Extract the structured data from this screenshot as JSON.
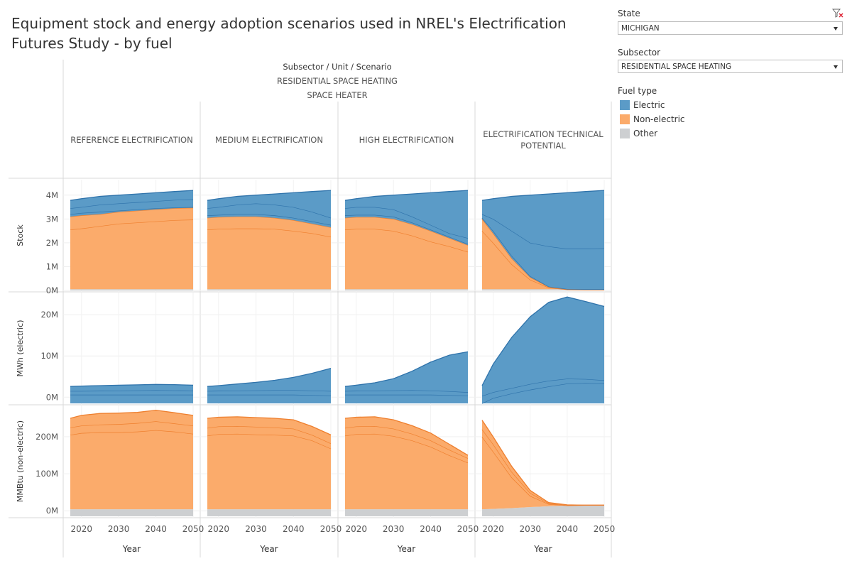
{
  "title": "Equipment stock and energy adoption scenarios used in NREL's Electrification Futures Study - by fuel",
  "filters": {
    "state_label": "State",
    "state_value": "MICHIGAN",
    "subsector_label": "Subsector",
    "subsector_value": "RESIDENTIAL SPACE HEATING",
    "fueltype_label": "Fuel type",
    "legend": [
      {
        "label": "Electric",
        "color": "#5b9bc7"
      },
      {
        "label": "Non-electric",
        "color": "#fbab6b"
      },
      {
        "label": "Other",
        "color": "#cdcfd1"
      }
    ]
  },
  "header": {
    "hierarchy_label": "Subsector / Unit / Scenario",
    "subsector": "RESIDENTIAL SPACE HEATING",
    "unit": "SPACE HEATER"
  },
  "colors": {
    "electric_fill": "#5b9bc7",
    "electric_line": "#2f73ab",
    "nonelectric_fill": "#fbab6b",
    "nonelectric_line": "#ee7f2e",
    "other_fill": "#cdcfd1"
  },
  "chart_data": {
    "type": "area",
    "scenarios": [
      "REFERENCE ELECTRIFICATION",
      "MEDIUM ELECTRIFICATION",
      "HIGH ELECTRIFICATION",
      "ELECTRIFICATION TECHNICAL POTENTIAL"
    ],
    "x": [
      2017,
      2020,
      2025,
      2030,
      2035,
      2040,
      2045,
      2050
    ],
    "xticks": [
      "2020",
      "2030",
      "2040",
      "2050"
    ],
    "xlabel": "Year",
    "rows": [
      {
        "ylabel": "Stock",
        "yticks": [
          {
            "v": 0,
            "t": "0M"
          },
          {
            "v": 1,
            "t": "1M"
          },
          {
            "v": 2,
            "t": "2M"
          },
          {
            "v": 3,
            "t": "3M"
          },
          {
            "v": 4,
            "t": "4M"
          }
        ],
        "ylim": [
          0,
          4.5
        ],
        "panels": [
          {
            "other": [
              0.05,
              0.05,
              0.05,
              0.05,
              0.05,
              0.05,
              0.05,
              0.05
            ],
            "nonelectric": [
              [
                2.55,
                2.6,
                2.7,
                2.8,
                2.85,
                2.9,
                2.95,
                2.97
              ],
              [
                3.1,
                3.15,
                3.2,
                3.3,
                3.35,
                3.4,
                3.45,
                3.47
              ]
            ],
            "electric": [
              [
                3.2,
                3.25,
                3.3,
                3.35,
                3.4,
                3.45,
                3.48,
                3.5
              ],
              [
                3.45,
                3.5,
                3.6,
                3.65,
                3.7,
                3.75,
                3.8,
                3.82
              ],
              [
                3.78,
                3.85,
                3.95,
                4.0,
                4.05,
                4.1,
                4.15,
                4.2
              ]
            ]
          },
          {
            "other": [
              0.05,
              0.05,
              0.05,
              0.05,
              0.05,
              0.05,
              0.05,
              0.05
            ],
            "nonelectric": [
              [
                2.55,
                2.58,
                2.6,
                2.6,
                2.58,
                2.5,
                2.4,
                2.25
              ],
              [
                3.05,
                3.08,
                3.1,
                3.1,
                3.05,
                2.95,
                2.8,
                2.65
              ]
            ],
            "electric": [
              [
                3.15,
                3.17,
                3.2,
                3.2,
                3.15,
                3.05,
                2.9,
                2.75
              ],
              [
                3.45,
                3.5,
                3.6,
                3.65,
                3.6,
                3.5,
                3.3,
                3.05
              ],
              [
                3.78,
                3.85,
                3.95,
                4.0,
                4.05,
                4.1,
                4.15,
                4.2
              ]
            ]
          },
          {
            "other": [
              0.05,
              0.05,
              0.05,
              0.05,
              0.05,
              0.05,
              0.05,
              0.05
            ],
            "nonelectric": [
              [
                2.55,
                2.58,
                2.58,
                2.5,
                2.3,
                2.05,
                1.85,
                1.62
              ],
              [
                3.05,
                3.08,
                3.08,
                3.0,
                2.78,
                2.5,
                2.2,
                1.9
              ]
            ],
            "electric": [
              [
                3.15,
                3.17,
                3.17,
                3.1,
                2.85,
                2.55,
                2.25,
                1.95
              ],
              [
                3.45,
                3.5,
                3.5,
                3.4,
                3.1,
                2.75,
                2.4,
                2.2
              ],
              [
                3.78,
                3.85,
                3.95,
                4.0,
                4.05,
                4.1,
                4.15,
                4.2
              ]
            ]
          },
          {
            "other": [
              0.05,
              0.05,
              0.05,
              0.05,
              0.05,
              0.05,
              0.05,
              0.05
            ],
            "nonelectric": [
              [
                2.5,
                2.0,
                1.1,
                0.45,
                0.12,
                0.04,
                0.03,
                0.03
              ],
              [
                3.0,
                2.4,
                1.35,
                0.55,
                0.15,
                0.05,
                0.04,
                0.04
              ]
            ],
            "electric": [
              [
                3.05,
                2.5,
                1.45,
                0.6,
                0.16,
                0.06,
                0.05,
                0.05
              ],
              [
                3.2,
                3.0,
                2.5,
                2.0,
                1.85,
                1.75,
                1.75,
                1.77
              ],
              [
                3.78,
                3.85,
                3.95,
                4.0,
                4.05,
                4.1,
                4.15,
                4.2
              ]
            ]
          }
        ]
      },
      {
        "ylabel": "MWh (electric)",
        "yticks": [
          {
            "v": 0,
            "t": "0M"
          },
          {
            "v": 10,
            "t": "10M"
          },
          {
            "v": 20,
            "t": "20M"
          }
        ],
        "ylim": [
          -1.5,
          24.5
        ],
        "panels": [
          {
            "other": null,
            "nonelectric": [],
            "electric": [
              [
                0.6,
                0.6,
                0.6,
                0.6,
                0.6,
                0.6,
                0.6,
                0.6
              ],
              [
                1.5,
                1.5,
                1.55,
                1.6,
                1.65,
                1.7,
                1.65,
                1.6
              ],
              [
                2.6,
                2.7,
                2.8,
                2.9,
                3.0,
                3.1,
                3.05,
                2.9
              ]
            ]
          },
          {
            "other": null,
            "nonelectric": [],
            "electric": [
              [
                0.6,
                0.6,
                0.6,
                0.6,
                0.6,
                0.6,
                0.5,
                0.4
              ],
              [
                1.5,
                1.55,
                1.6,
                1.65,
                1.7,
                1.7,
                1.6,
                1.5
              ],
              [
                2.6,
                2.8,
                3.2,
                3.6,
                4.1,
                4.8,
                5.8,
                7.0
              ]
            ]
          },
          {
            "other": null,
            "nonelectric": [],
            "electric": [
              [
                0.6,
                0.6,
                0.6,
                0.6,
                0.6,
                0.6,
                0.5,
                0.4
              ],
              [
                1.5,
                1.55,
                1.6,
                1.65,
                1.7,
                1.6,
                1.45,
                1.2
              ],
              [
                2.6,
                2.9,
                3.5,
                4.5,
                6.3,
                8.5,
                10.2,
                11.0
              ]
            ]
          },
          {
            "other": null,
            "nonelectric": [],
            "electric": [
              [
                -1.5,
                -0.2,
                0.9,
                1.8,
                2.6,
                3.3,
                3.4,
                3.3
              ],
              [
                0.3,
                1.2,
                2.2,
                3.2,
                4.0,
                4.5,
                4.4,
                4.1
              ],
              [
                2.8,
                8.0,
                14.5,
                19.5,
                23.0,
                24.3,
                23.2,
                22.0
              ]
            ]
          }
        ]
      },
      {
        "ylabel": "MMBtu (non-electric)",
        "yticks": [
          {
            "v": 0,
            "t": "0M"
          },
          {
            "v": 100,
            "t": "100M"
          },
          {
            "v": 200,
            "t": "200M"
          }
        ],
        "ylim": [
          -15,
          275
        ],
        "panels": [
          {
            "other": [
              4,
              4,
              4,
              4,
              4,
              4,
              4,
              4
            ],
            "nonelectric": [
              [
                205,
                210,
                212,
                212,
                214,
                218,
                214,
                208
              ],
              [
                225,
                230,
                233,
                234,
                237,
                242,
                236,
                230
              ],
              [
                250,
                258,
                263,
                264,
                266,
                272,
                265,
                258
              ]
            ],
            "electric": []
          },
          {
            "other": [
              4,
              4,
              4,
              4,
              4,
              4,
              4,
              4
            ],
            "nonelectric": [
              [
                203,
                207,
                208,
                206,
                205,
                203,
                190,
                168
              ],
              [
                224,
                228,
                229,
                227,
                225,
                222,
                205,
                182
              ],
              [
                250,
                253,
                254,
                252,
                250,
                246,
                228,
                205
              ]
            ],
            "electric": []
          },
          {
            "other": [
              4,
              4,
              4,
              4,
              4,
              4,
              4,
              4
            ],
            "nonelectric": [
              [
                203,
                207,
                208,
                202,
                190,
                173,
                150,
                130
              ],
              [
                224,
                228,
                229,
                222,
                208,
                190,
                165,
                142
              ],
              [
                250,
                253,
                254,
                246,
                230,
                210,
                180,
                150
              ]
            ],
            "electric": []
          },
          {
            "other": [
              4,
              5,
              7,
              10,
              12,
              14,
              15,
              15
            ],
            "nonelectric": [
              [
                200,
                160,
                90,
                40,
                18,
                14,
                15,
                15
              ],
              [
                220,
                180,
                105,
                48,
                20,
                15,
                15,
                15
              ],
              [
                245,
                200,
                120,
                55,
                22,
                16,
                15,
                15
              ]
            ],
            "electric": []
          }
        ]
      }
    ]
  }
}
